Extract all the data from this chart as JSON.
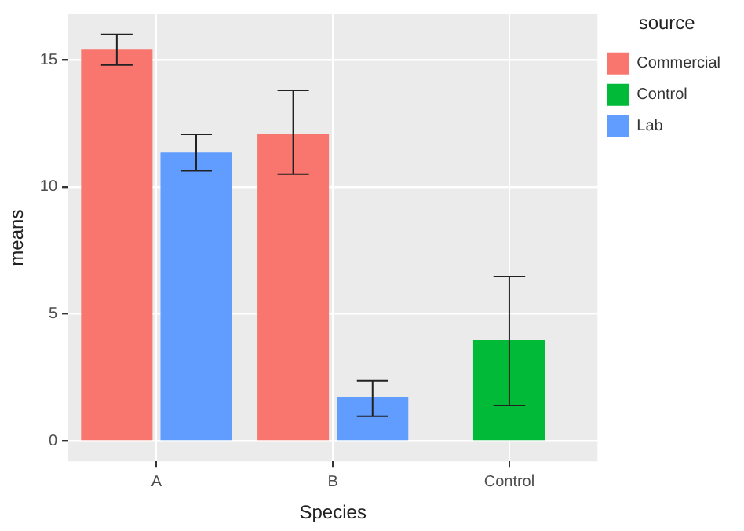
{
  "chart_data": {
    "type": "bar",
    "xlabel": "Species",
    "ylabel": "means",
    "legend_title": "source",
    "categories": [
      "A",
      "B",
      "Control"
    ],
    "series": [
      {
        "name": "Commercial",
        "color": "#f8766d",
        "values": [
          15.4,
          12.1,
          null
        ],
        "errors": [
          [
            14.8,
            16.0
          ],
          [
            10.5,
            13.8
          ],
          null
        ]
      },
      {
        "name": "Control",
        "color": "#00ba38",
        "values": [
          null,
          null,
          3.97
        ],
        "errors": [
          null,
          null,
          [
            1.4,
            6.47
          ]
        ]
      },
      {
        "name": "Lab",
        "color": "#619cff",
        "values": [
          11.35,
          1.71,
          null
        ],
        "errors": [
          [
            10.63,
            12.07
          ],
          [
            0.98,
            2.37
          ],
          null
        ]
      }
    ],
    "ylim": [
      -0.8,
      16.8
    ],
    "yticks": [
      0,
      5,
      10,
      15
    ],
    "grid": true,
    "legend": "right"
  }
}
